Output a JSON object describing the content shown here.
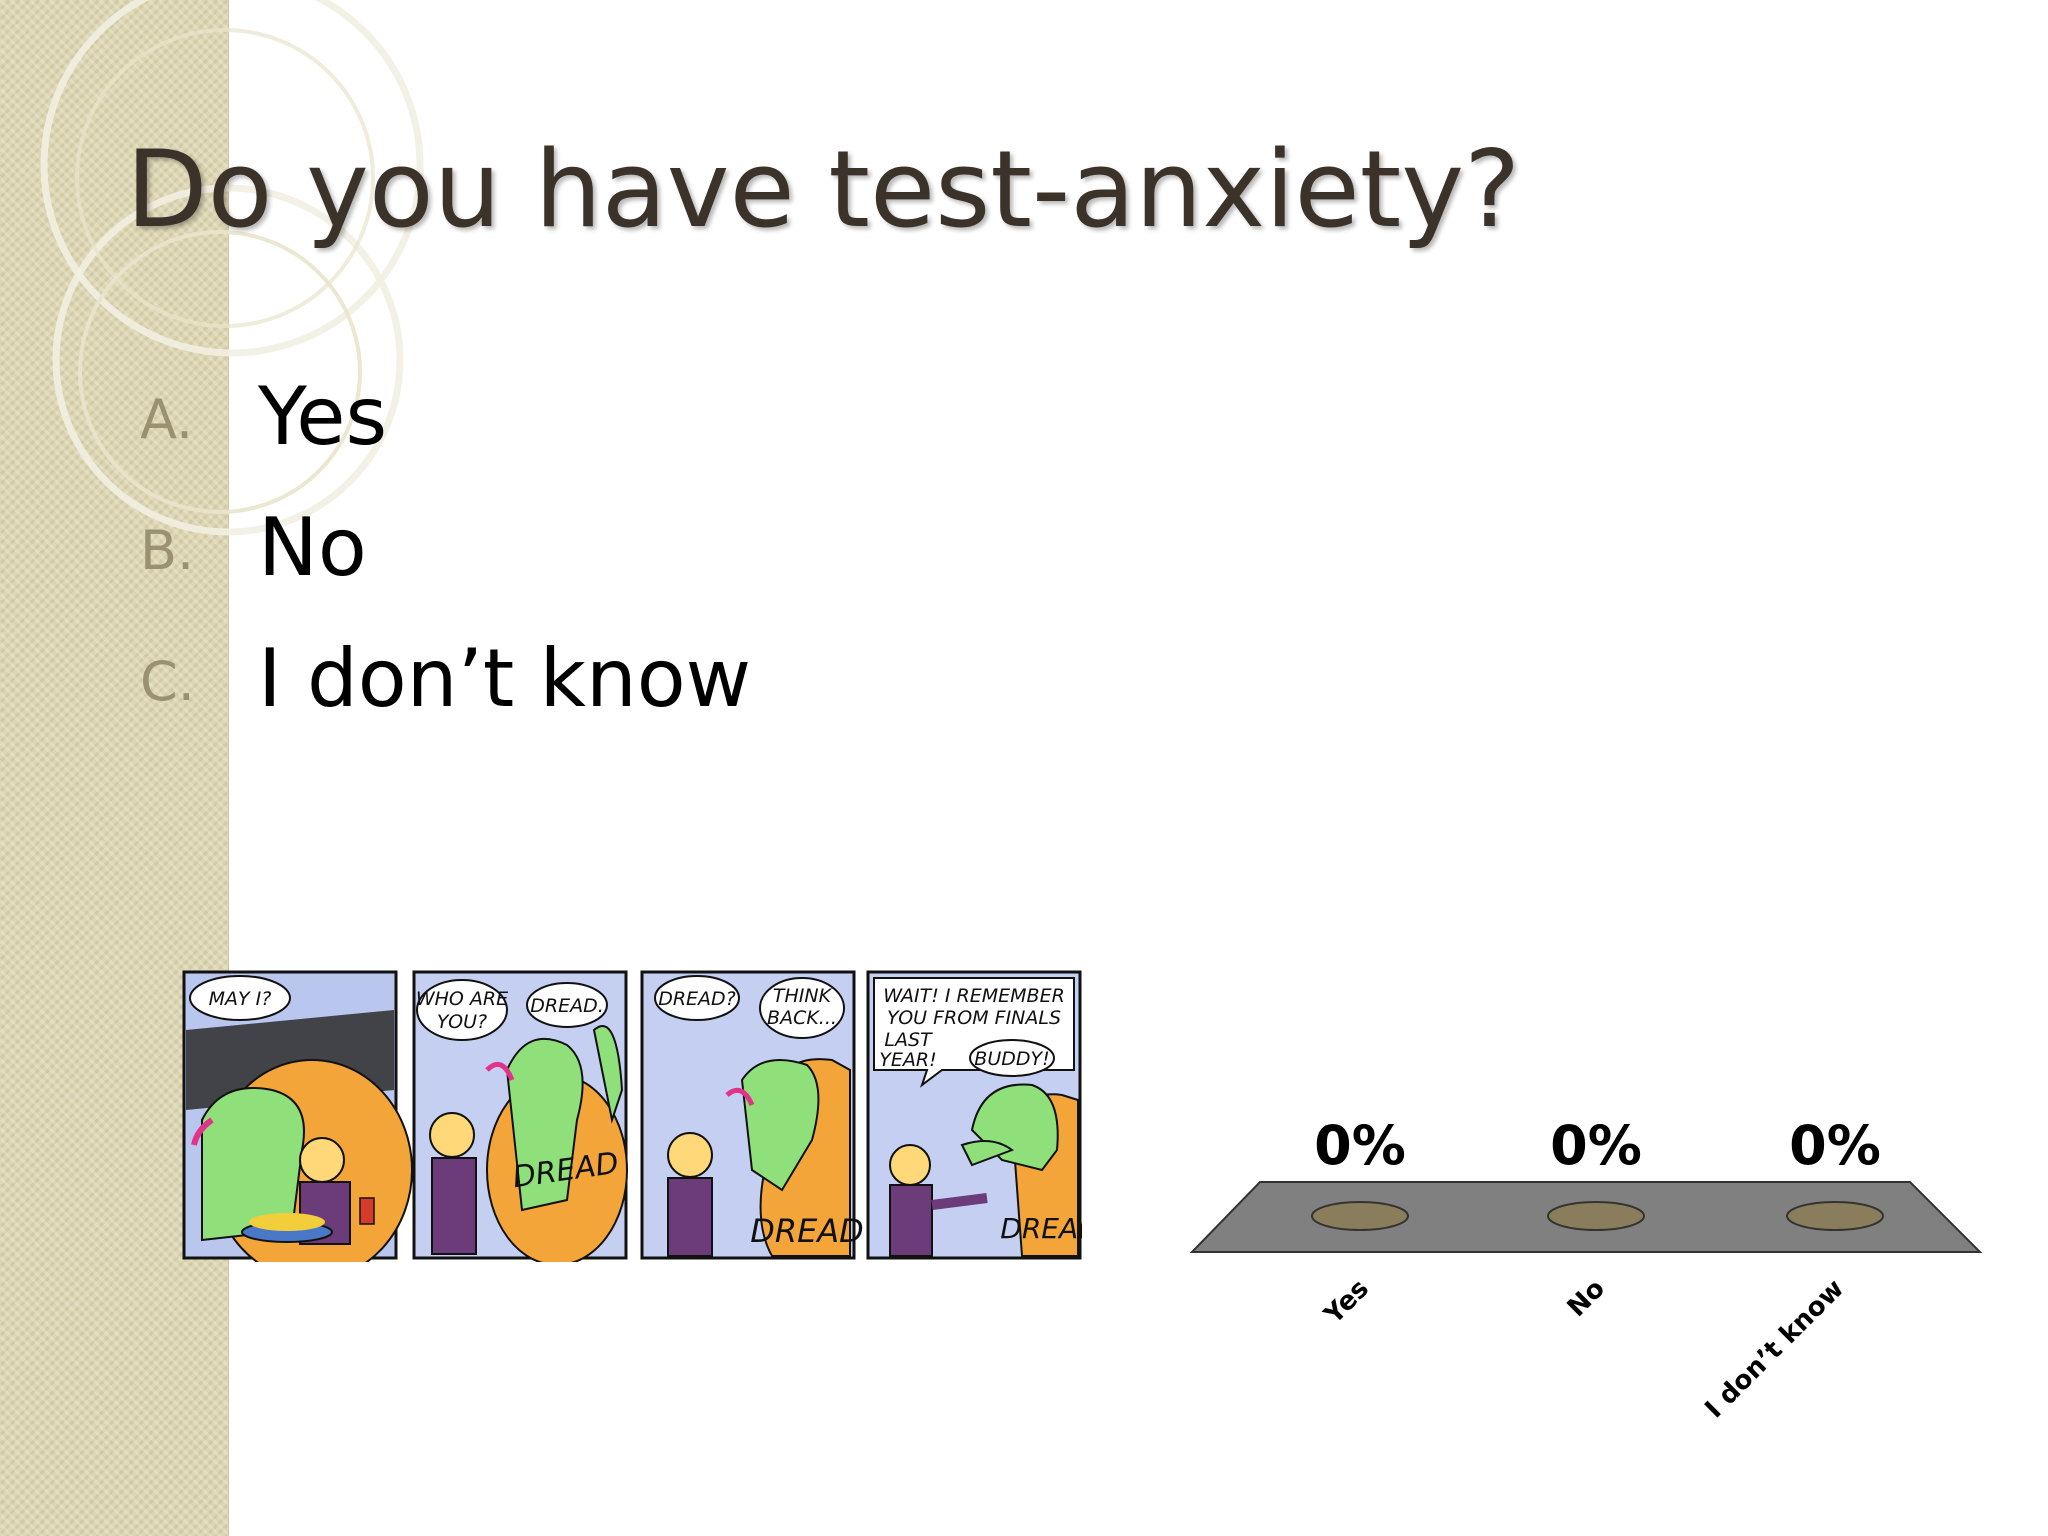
{
  "slide": {
    "title": "Do you have test-anxiety?",
    "options": [
      {
        "letter": "A.",
        "text": "Yes"
      },
      {
        "letter": "B.",
        "text": "No"
      },
      {
        "letter": "C.",
        "text": "I don’t know"
      }
    ]
  },
  "comic": {
    "panels": [
      {
        "bubbles": [
          "MAY I?"
        ]
      },
      {
        "bubbles": [
          "WHO ARE",
          "YOU?",
          "DREAD."
        ],
        "shirt": "DREAD"
      },
      {
        "bubbles": [
          "DREAD?",
          "THINK",
          "BACK..."
        ],
        "shirt": "DREAD"
      },
      {
        "bubbles": [
          "WAIT! I REMEMBER",
          "YOU FROM FINALS",
          "LAST",
          "YEAR!",
          "BUDDY!"
        ],
        "shirt": "DREAD"
      }
    ]
  },
  "chart_data": {
    "type": "bar",
    "categories": [
      "Yes",
      "No",
      "I don’t know"
    ],
    "values": [
      0,
      0,
      0
    ],
    "value_labels": [
      "0%",
      "0%",
      "0%"
    ],
    "unit": "%",
    "colors": {
      "base": "#7f7f7f",
      "pad": "#8a7d5c"
    }
  }
}
